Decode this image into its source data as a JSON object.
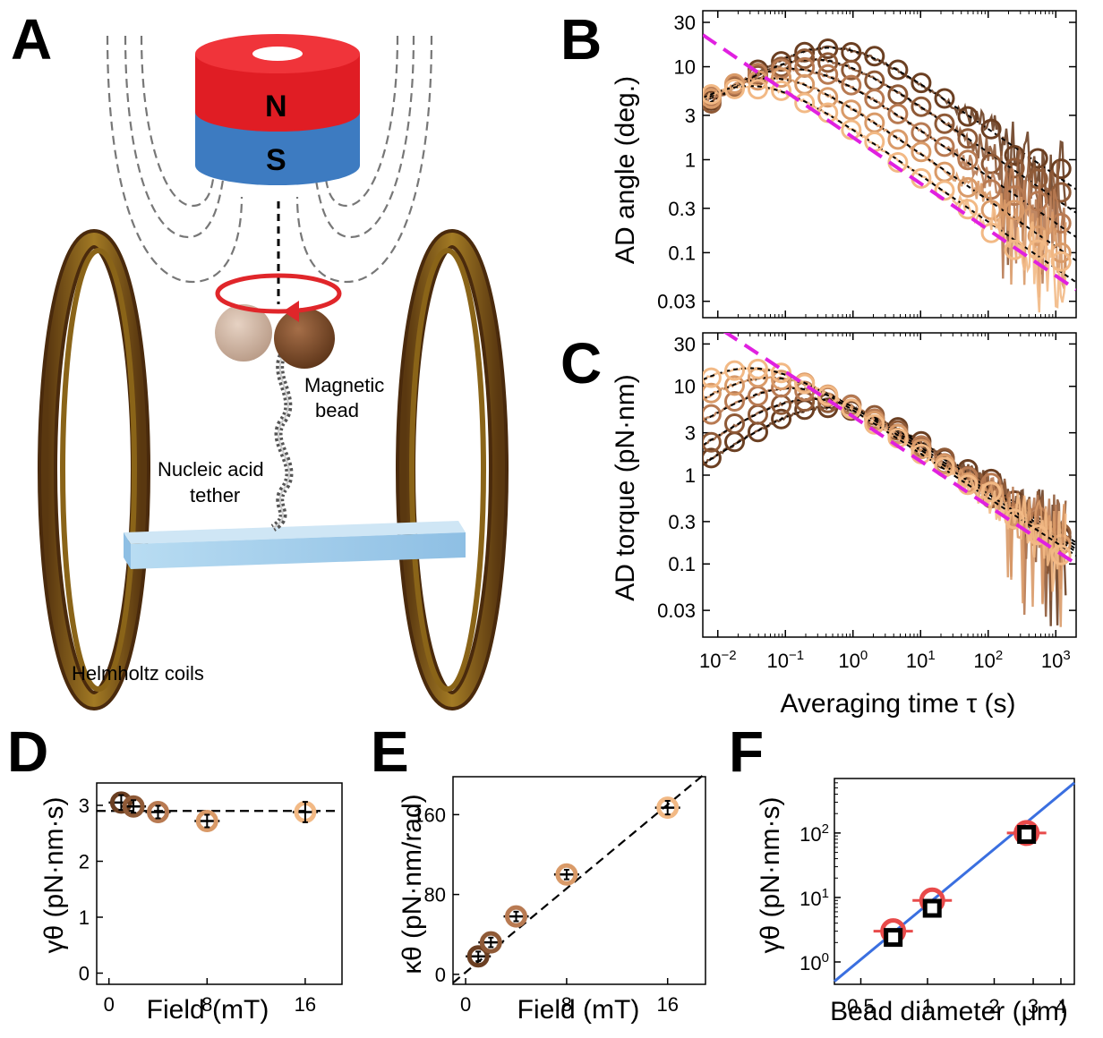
{
  "panels": {
    "A": "A",
    "B": "B",
    "C": "C",
    "D": "D",
    "E": "E",
    "F": "F"
  },
  "schematic": {
    "magnet_north": "N",
    "magnet_south": "S",
    "bead_label_line1": "Magnetic",
    "bead_label_line2": "bead",
    "tether_label_line1": "Nucleic acid",
    "tether_label_line2": "tether",
    "coils_label": "Helmholtz coils",
    "colors": {
      "north": "#e01d24",
      "south": "#3d7bc1",
      "coil": "#7a5418",
      "ring": "#e0262a",
      "surface": "#a9d1ec"
    }
  },
  "colors": {
    "series": [
      "#6b3f22",
      "#8f5a37",
      "#b87a52",
      "#d99a68",
      "#f2b985"
    ],
    "guide": "#e020e0",
    "fit": "#000000",
    "f_line": "#3a6fe0",
    "f_red": "#e84a4a"
  },
  "chart_data": [
    {
      "panel": "B",
      "type": "line",
      "scale": "log-log",
      "ylabel": "AD angle (deg.)",
      "xlabel": "",
      "xlim": [
        0.006,
        2000
      ],
      "ylim": [
        0.02,
        40
      ],
      "yticks": [
        {
          "v": 0.03,
          "t": "0.03"
        },
        {
          "v": 0.1,
          "t": "0.1"
        },
        {
          "v": 0.3,
          "t": "0.3"
        },
        {
          "v": 1,
          "t": "1"
        },
        {
          "v": 3,
          "t": "3"
        },
        {
          "v": 10,
          "t": "10"
        },
        {
          "v": 30,
          "t": "30"
        }
      ],
      "series": [
        {
          "field_mT": 1,
          "peak": 16,
          "tau_peak": 0.45
        },
        {
          "field_mT": 2,
          "peak": 12,
          "tau_peak": 0.25
        },
        {
          "field_mT": 4,
          "peak": 9.5,
          "tau_peak": 0.12
        },
        {
          "field_mT": 8,
          "peak": 7.5,
          "tau_peak": 0.06
        },
        {
          "field_mT": 16,
          "peak": 6.2,
          "tau_peak": 0.03
        }
      ],
      "guide_line": {
        "x0": 0.006,
        "y0": 22,
        "x1": 2000,
        "y1": 0.04
      }
    },
    {
      "panel": "C",
      "type": "line",
      "scale": "log-log",
      "ylabel": "AD torque (pN·nm)",
      "xlabel": "Averaging time τ (s)",
      "xlim": [
        0.006,
        2000
      ],
      "ylim": [
        0.015,
        40
      ],
      "xticks": [
        {
          "v": 0.01,
          "t": "10",
          "e": "−2"
        },
        {
          "v": 0.1,
          "t": "10",
          "e": "−1"
        },
        {
          "v": 1,
          "t": "10",
          "e": "0"
        },
        {
          "v": 10,
          "t": "10",
          "e": "1"
        },
        {
          "v": 100,
          "t": "10",
          "e": "2"
        },
        {
          "v": 1000,
          "t": "10",
          "e": "3"
        }
      ],
      "yticks": [
        {
          "v": 0.03,
          "t": "0.03"
        },
        {
          "v": 0.1,
          "t": "0.1"
        },
        {
          "v": 0.3,
          "t": "0.3"
        },
        {
          "v": 1,
          "t": "1"
        },
        {
          "v": 3,
          "t": "3"
        },
        {
          "v": 10,
          "t": "10"
        },
        {
          "v": 30,
          "t": "30"
        }
      ],
      "series": [
        {
          "field_mT": 1,
          "peak": 5.8,
          "tau_peak": 0.45
        },
        {
          "field_mT": 2,
          "peak": 7.2,
          "tau_peak": 0.25
        },
        {
          "field_mT": 4,
          "peak": 9.5,
          "tau_peak": 0.12
        },
        {
          "field_mT": 8,
          "peak": 12.5,
          "tau_peak": 0.06
        },
        {
          "field_mT": 16,
          "peak": 16,
          "tau_peak": 0.03
        }
      ],
      "guide_line": {
        "x0": 0.006,
        "y0": 60,
        "x1": 2000,
        "y1": 0.1
      }
    },
    {
      "panel": "D",
      "type": "scatter",
      "ylabel": "γθ (pN·nm·s)",
      "xlabel": "Field (mT)",
      "xlim": [
        -1,
        19
      ],
      "ylim": [
        -0.2,
        3.4
      ],
      "xticks": [
        0,
        8,
        16
      ],
      "yticks": [
        0,
        1,
        2,
        3
      ],
      "x": [
        1,
        2,
        4,
        8,
        16
      ],
      "y": [
        3.05,
        2.98,
        2.88,
        2.72,
        2.88
      ],
      "err": [
        0.1,
        0.08,
        0.08,
        0.08,
        0.15
      ],
      "fit_y": 2.9
    },
    {
      "panel": "E",
      "type": "scatter",
      "ylabel": "κθ (pN·nm/rad)",
      "xlabel": "Field (mT)",
      "xlim": [
        -1,
        19
      ],
      "ylim": [
        -10,
        198
      ],
      "xticks": [
        0,
        8,
        16
      ],
      "yticks": [
        0,
        80,
        160
      ],
      "x": [
        1,
        2,
        4,
        8,
        16
      ],
      "y": [
        18,
        32,
        58,
        100,
        167
      ],
      "err": [
        3,
        3,
        3,
        3,
        5
      ],
      "fit_slope": 10.5,
      "fit_intercept": 2
    },
    {
      "panel": "F",
      "type": "scatter",
      "scale": "log-log",
      "ylabel": "γθ (pN·nm·s)",
      "xlabel": "Bead diameter (μm)",
      "xlim": [
        0.38,
        4.6
      ],
      "ylim": [
        0.45,
        700
      ],
      "xticks": [
        0.5,
        1,
        2,
        3,
        4
      ],
      "yticks": [
        {
          "v": 1,
          "t": "10",
          "e": "0"
        },
        {
          "v": 10,
          "t": "10",
          "e": "1"
        },
        {
          "v": 100,
          "t": "10",
          "e": "2"
        }
      ],
      "red_points": {
        "x": [
          0.7,
          1.05,
          2.8
        ],
        "y": [
          3.0,
          9.0,
          100
        ]
      },
      "black_points": {
        "x": [
          0.7,
          1.05,
          2.8
        ],
        "y": [
          2.4,
          6.8,
          95
        ]
      },
      "fit_line": {
        "x0": 0.38,
        "y0": 0.5,
        "x1": 4.6,
        "y1": 600
      }
    }
  ]
}
